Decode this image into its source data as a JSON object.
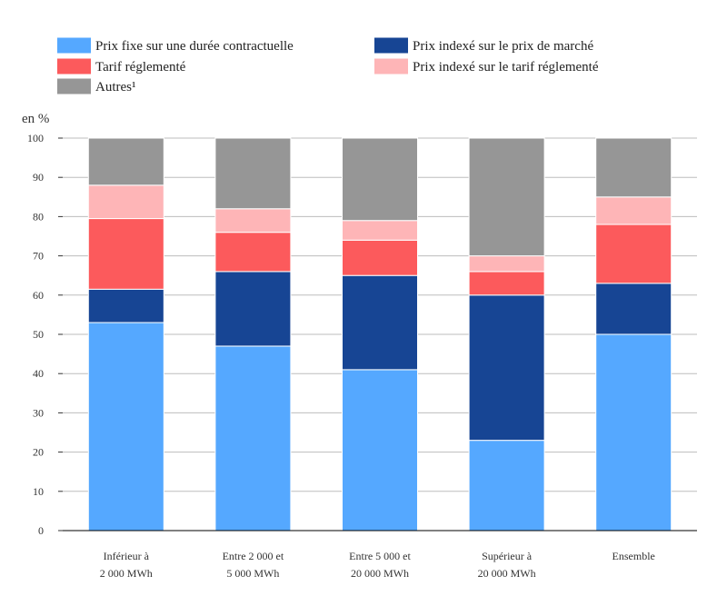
{
  "chart_data": {
    "type": "bar",
    "stacked": true,
    "ylabel": "en %",
    "ylim": [
      0,
      100
    ],
    "yticks": [
      0,
      10,
      20,
      30,
      40,
      50,
      60,
      70,
      80,
      90,
      100
    ],
    "grid": true,
    "legend_position": "top",
    "categories": [
      [
        "Inférieur à",
        "2 000 MWh"
      ],
      [
        "Entre 2 000 et",
        "5 000 MWh"
      ],
      [
        "Entre 5 000 et",
        "20 000 MWh"
      ],
      [
        "Supérieur à",
        "20 000 MWh"
      ],
      [
        "Ensemble"
      ]
    ],
    "series": [
      {
        "name": "Prix fixe sur une durée contractuelle",
        "color": "#55a8ff",
        "values": [
          53,
          47,
          41,
          23,
          50
        ]
      },
      {
        "name": "Prix indexé sur le prix de marché",
        "color": "#174594",
        "values": [
          8.5,
          19,
          24,
          37,
          13
        ]
      },
      {
        "name": "Tarif réglementé",
        "color": "#fc5a5c",
        "values": [
          18,
          10,
          9,
          6,
          15
        ]
      },
      {
        "name": "Prix indexé sur le tarif réglementé",
        "color": "#feb5b7",
        "values": [
          8.5,
          6,
          5,
          4,
          7
        ]
      },
      {
        "name": "Autres¹",
        "color": "#969696",
        "values": [
          12,
          18,
          21,
          30,
          15
        ]
      }
    ],
    "legend_order": [
      0,
      2,
      4,
      1,
      3
    ]
  }
}
